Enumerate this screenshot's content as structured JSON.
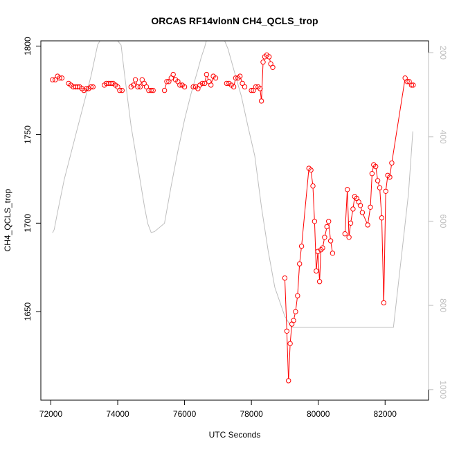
{
  "chart_data": {
    "type": "line",
    "title": "ORCAS RF14vlonN CH4_QCLS_trop",
    "xlabel": "UTC Seconds",
    "ylabel": "CH4_QCLS_trop",
    "xlim": [
      71700,
      83300
    ],
    "ylim": [
      1600,
      1803
    ],
    "x_ticks": [
      72000,
      74000,
      76000,
      78000,
      80000,
      82000
    ],
    "y_ticks": [
      1650,
      1700,
      1750,
      1800
    ],
    "y2_lim": [
      1025,
      172
    ],
    "y2_ticks": [
      200,
      400,
      600,
      800,
      1000
    ],
    "colors": {
      "primary": "#ff0000",
      "secondary": "#bebebe"
    },
    "series": [
      {
        "role": "primary",
        "style": "points-with-lines",
        "segments": [
          [
            [
              72050,
              1781
            ],
            [
              72130,
              1781
            ],
            [
              72200,
              1783
            ],
            [
              72260,
              1782
            ],
            [
              72330,
              1782
            ]
          ],
          [
            [
              72530,
              1779
            ],
            [
              72600,
              1778
            ],
            [
              72670,
              1777
            ],
            [
              72740,
              1777
            ],
            [
              72800,
              1777
            ],
            [
              72860,
              1777
            ],
            [
              72930,
              1776
            ],
            [
              72990,
              1775
            ],
            [
              73060,
              1776
            ],
            [
              73130,
              1776
            ],
            [
              73200,
              1777
            ],
            [
              73260,
              1777
            ]
          ],
          [
            [
              73600,
              1778
            ],
            [
              73660,
              1779
            ],
            [
              73730,
              1779
            ],
            [
              73800,
              1779
            ],
            [
              73860,
              1779
            ],
            [
              73930,
              1778
            ],
            [
              74000,
              1777
            ],
            [
              74060,
              1775
            ],
            [
              74130,
              1775
            ]
          ],
          [
            [
              74400,
              1777
            ],
            [
              74470,
              1778
            ],
            [
              74530,
              1781
            ],
            [
              74600,
              1777
            ],
            [
              74670,
              1777
            ],
            [
              74730,
              1781
            ],
            [
              74790,
              1779
            ],
            [
              74860,
              1777
            ],
            [
              74930,
              1775
            ],
            [
              75000,
              1775
            ],
            [
              75060,
              1775
            ]
          ],
          [
            [
              75400,
              1775
            ],
            [
              75470,
              1780
            ],
            [
              75530,
              1780
            ],
            [
              75600,
              1782
            ],
            [
              75660,
              1784
            ],
            [
              75730,
              1781
            ],
            [
              75800,
              1780
            ],
            [
              75860,
              1778
            ],
            [
              75930,
              1778
            ],
            [
              76000,
              1777
            ]
          ],
          [
            [
              76260,
              1777
            ],
            [
              76330,
              1777
            ],
            [
              76400,
              1776
            ],
            [
              76460,
              1778
            ],
            [
              76530,
              1779
            ],
            [
              76600,
              1779
            ],
            [
              76660,
              1784
            ],
            [
              76730,
              1780
            ],
            [
              76790,
              1778
            ],
            [
              76860,
              1783
            ],
            [
              76930,
              1782
            ]
          ],
          [
            [
              77260,
              1779
            ],
            [
              77330,
              1779
            ],
            [
              77400,
              1778
            ],
            [
              77470,
              1777
            ],
            [
              77530,
              1782
            ],
            [
              77600,
              1782
            ],
            [
              77660,
              1783
            ],
            [
              77730,
              1779
            ],
            [
              77800,
              1777
            ]
          ],
          [
            [
              78000,
              1775
            ],
            [
              78060,
              1775
            ],
            [
              78130,
              1777
            ],
            [
              78200,
              1777
            ],
            [
              78260,
              1776
            ],
            [
              78300,
              1769
            ],
            [
              78350,
              1791
            ],
            [
              78400,
              1794
            ],
            [
              78460,
              1795
            ],
            [
              78530,
              1794
            ],
            [
              78580,
              1790
            ],
            [
              78640,
              1788
            ]
          ],
          [
            [
              79000,
              1669
            ],
            [
              79060,
              1639
            ],
            [
              79110,
              1611
            ],
            [
              79160,
              1632
            ],
            [
              79210,
              1643
            ],
            [
              79260,
              1645
            ],
            [
              79320,
              1650
            ],
            [
              79380,
              1659
            ],
            [
              79440,
              1677
            ],
            [
              79500,
              1687
            ],
            [
              79720,
              1731
            ],
            [
              79780,
              1730
            ],
            [
              79840,
              1721
            ],
            [
              79890,
              1701
            ],
            [
              79940,
              1673
            ],
            [
              79990,
              1684
            ],
            [
              80040,
              1667
            ],
            [
              80080,
              1685
            ],
            [
              80130,
              1686
            ],
            [
              80190,
              1692
            ],
            [
              80260,
              1698
            ],
            [
              80310,
              1701
            ],
            [
              80370,
              1690
            ],
            [
              80430,
              1683
            ]
          ],
          [
            [
              80800,
              1694
            ],
            [
              80870,
              1719
            ],
            [
              80920,
              1692
            ],
            [
              80970,
              1700
            ],
            [
              81040,
              1708
            ],
            [
              81090,
              1715
            ],
            [
              81150,
              1714
            ],
            [
              81210,
              1712
            ],
            [
              81260,
              1710
            ],
            [
              81320,
              1706
            ],
            [
              81480,
              1699
            ],
            [
              81560,
              1709
            ],
            [
              81610,
              1728
            ],
            [
              81660,
              1733
            ],
            [
              81720,
              1732
            ],
            [
              81780,
              1724
            ],
            [
              81840,
              1720
            ],
            [
              81900,
              1703
            ],
            [
              81960,
              1655
            ],
            [
              82020,
              1718
            ],
            [
              82080,
              1727
            ],
            [
              82140,
              1726
            ],
            [
              82200,
              1734
            ],
            [
              82600,
              1782
            ],
            [
              82660,
              1780
            ],
            [
              82720,
              1780
            ],
            [
              82790,
              1778
            ],
            [
              82840,
              1778
            ]
          ]
        ]
      },
      {
        "role": "secondary",
        "style": "line",
        "y_axis": "right",
        "values": [
          [
            72050,
            628
          ],
          [
            72100,
            620
          ],
          [
            72200,
            579
          ],
          [
            72400,
            501
          ],
          [
            72800,
            378
          ],
          [
            73200,
            256
          ],
          [
            73400,
            181
          ],
          [
            73470,
            172
          ],
          [
            74000,
            172
          ],
          [
            74100,
            182
          ],
          [
            74200,
            249
          ],
          [
            74400,
            374
          ],
          [
            74600,
            469
          ],
          [
            74800,
            566
          ],
          [
            74900,
            606
          ],
          [
            75000,
            627
          ],
          [
            75100,
            625
          ],
          [
            75400,
            605
          ],
          [
            75600,
            516
          ],
          [
            75800,
            434
          ],
          [
            76000,
            359
          ],
          [
            76200,
            296
          ],
          [
            76400,
            240
          ],
          [
            76500,
            211
          ],
          [
            76600,
            187
          ],
          [
            76650,
            172
          ],
          [
            77200,
            172
          ],
          [
            77300,
            191
          ],
          [
            77500,
            248
          ],
          [
            77700,
            304
          ],
          [
            77900,
            376
          ],
          [
            78100,
            445
          ],
          [
            78300,
            566
          ],
          [
            78500,
            670
          ],
          [
            78700,
            757
          ],
          [
            79000,
            826
          ],
          [
            79200,
            852
          ],
          [
            80000,
            852
          ],
          [
            81000,
            852
          ],
          [
            82000,
            852
          ],
          [
            82250,
            852
          ],
          [
            82500,
            676
          ],
          [
            82700,
            535
          ],
          [
            82830,
            387
          ]
        ]
      }
    ]
  }
}
